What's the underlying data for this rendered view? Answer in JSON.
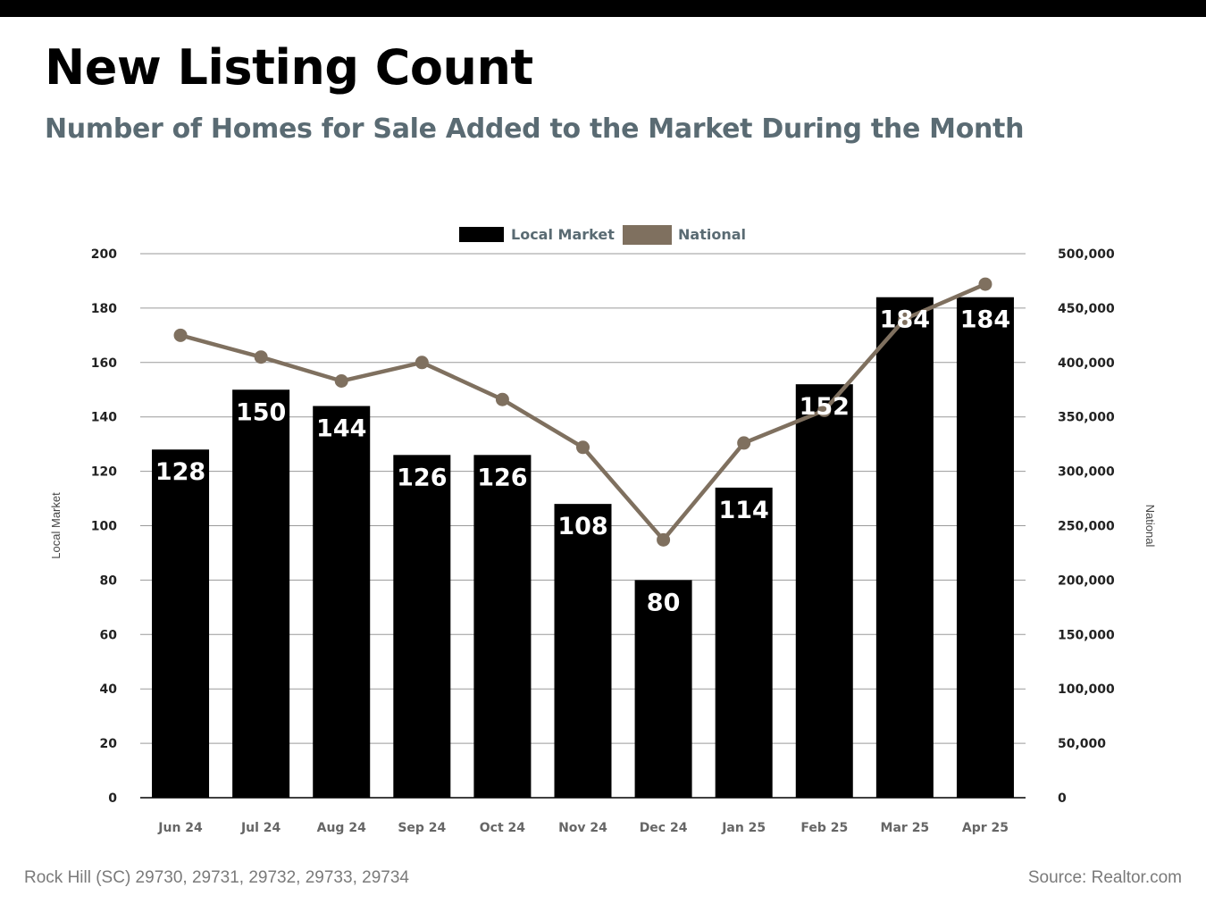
{
  "header": {
    "title": "New Listing Count",
    "subtitle": "Number of Homes for Sale Added to the Market During the Month"
  },
  "footer": {
    "location": "Rock Hill (SC) 29730, 29731, 29732, 29733, 29734",
    "source": "Source: Realtor.com"
  },
  "chart_data": {
    "type": "bar",
    "categories": [
      "Jun 24",
      "Jul 24",
      "Aug 24",
      "Sep 24",
      "Oct 24",
      "Nov 24",
      "Dec 24",
      "Jan 25",
      "Feb 25",
      "Mar 25",
      "Apr 25"
    ],
    "series": [
      {
        "name": "Local Market",
        "type": "bar",
        "axis": "left",
        "color": "#000000",
        "values": [
          128,
          150,
          144,
          126,
          126,
          108,
          80,
          114,
          152,
          184,
          184
        ]
      },
      {
        "name": "National",
        "type": "line",
        "axis": "right",
        "color": "#7f705f",
        "values": [
          425000,
          405000,
          383000,
          400000,
          366000,
          322000,
          237000,
          326000,
          356000,
          440000,
          472000
        ]
      }
    ],
    "ylabel": "Local Market",
    "y2label": "National",
    "ylim": [
      0,
      200
    ],
    "y2lim": [
      0,
      500000
    ],
    "yticks": [
      "0",
      "20",
      "40",
      "60",
      "80",
      "100",
      "120",
      "140",
      "160",
      "180",
      "200"
    ],
    "y2ticks": [
      "0",
      "50,000",
      "100,000",
      "150,000",
      "200,000",
      "250,000",
      "300,000",
      "350,000",
      "400,000",
      "450,000",
      "500,000"
    ],
    "legend": "top-center",
    "grid": true
  }
}
